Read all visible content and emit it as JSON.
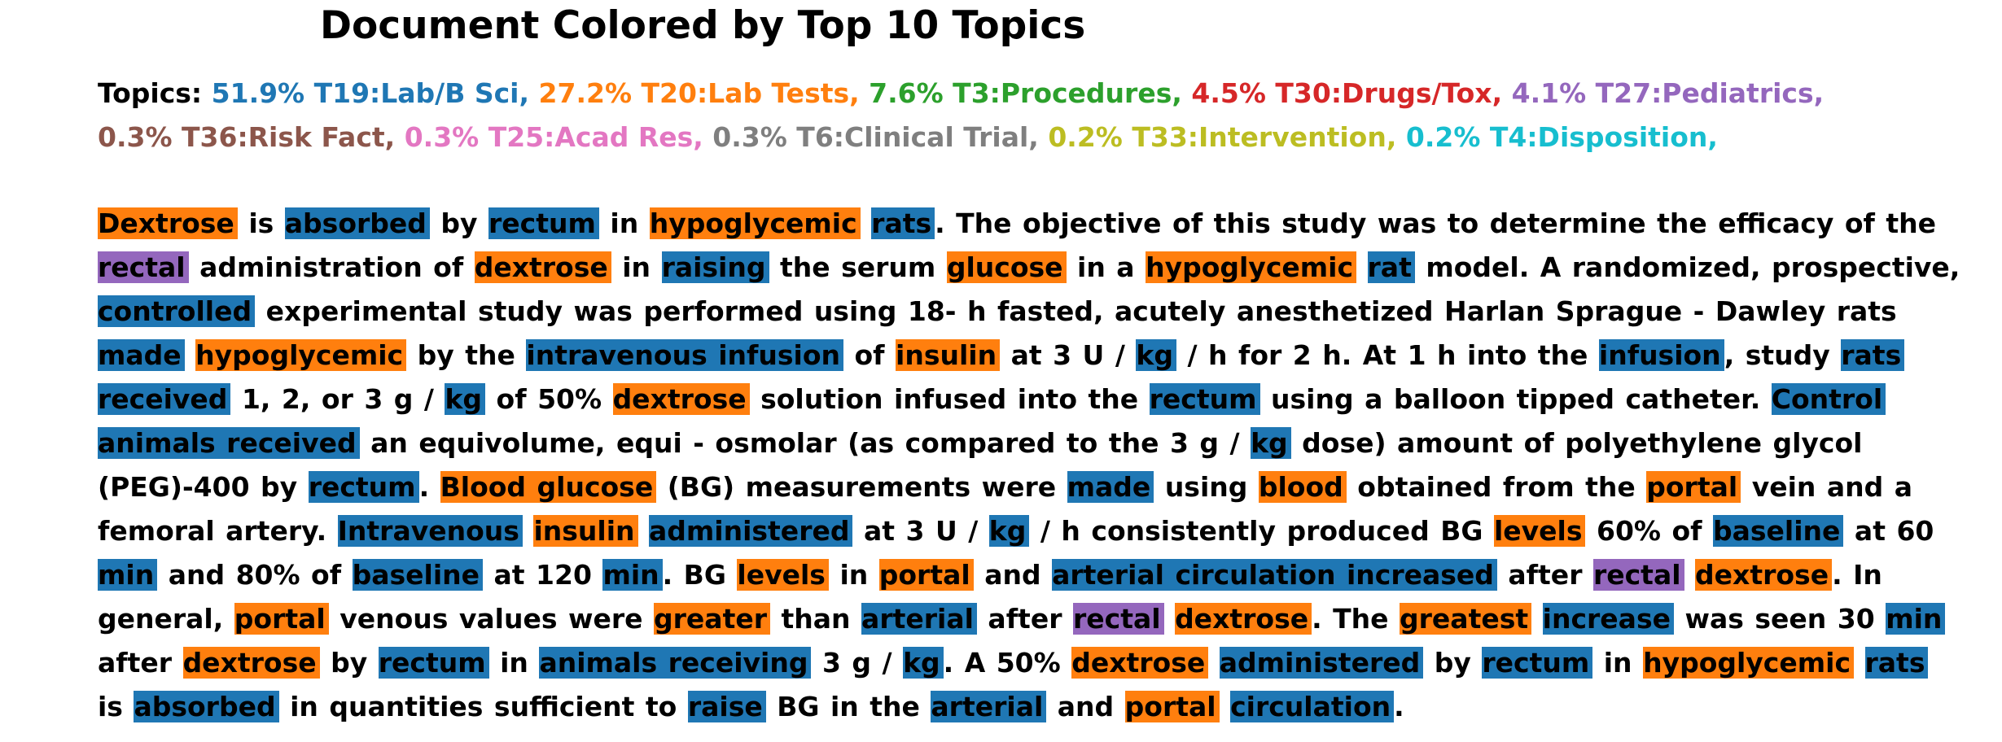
{
  "title": "Document Colored by Top 10 Topics",
  "topics_label": "Topics:",
  "topics": [
    {
      "text": "51.9% T19:Lab/B Sci,",
      "color": "#1f77b4"
    },
    {
      "text": "27.2% T20:Lab Tests,",
      "color": "#ff7f0e"
    },
    {
      "text": "7.6% T3:Procedures,",
      "color": "#2ca02c"
    },
    {
      "text": "4.5% T30:Drugs/Tox,",
      "color": "#d62728"
    },
    {
      "text": "4.1% T27:Pediatrics,",
      "color": "#9467bd"
    },
    {
      "text": "0.3% T36:Risk Fact,",
      "color": "#8c564b"
    },
    {
      "text": "0.3% T25:Acad Res,",
      "color": "#e377c2"
    },
    {
      "text": "0.3% T6:Clinical Trial,",
      "color": "#7f7f7f"
    },
    {
      "text": "0.2% T33:Intervention,",
      "color": "#bcbd22"
    },
    {
      "text": "0.2% T4:Disposition,",
      "color": "#17becf"
    }
  ],
  "document": [
    [
      "Dextrose",
      "#ff7f0e"
    ],
    [
      "is",
      null
    ],
    [
      "absorbed",
      "#1f77b4"
    ],
    [
      "by",
      null
    ],
    [
      "rectum",
      "#1f77b4"
    ],
    [
      "in",
      null
    ],
    [
      "hypoglycemic",
      "#ff7f0e"
    ],
    [
      "rats",
      "#1f77b4"
    ],
    [
      ". The objective of this study was to determine the efficacy of the",
      null
    ],
    [
      "rectal",
      "#9467bd"
    ],
    [
      "administration of",
      null
    ],
    [
      "dextrose",
      "#ff7f0e"
    ],
    [
      "in",
      null
    ],
    [
      "raising",
      "#1f77b4"
    ],
    [
      "the serum",
      null
    ],
    [
      "glucose",
      "#ff7f0e"
    ],
    [
      "in a",
      null
    ],
    [
      "hypoglycemic",
      "#ff7f0e"
    ],
    [
      "rat",
      "#1f77b4"
    ],
    [
      "model. A randomized, prospective,",
      null
    ],
    [
      "controlled",
      "#1f77b4"
    ],
    [
      "experimental study was performed using 18- h fasted, acutely anesthetized Harlan Sprague - Dawley rats",
      null
    ],
    [
      "made",
      "#1f77b4"
    ],
    [
      "hypoglycemic",
      "#ff7f0e"
    ],
    [
      "by the",
      null
    ],
    [
      "intravenous infusion",
      "#1f77b4"
    ],
    [
      "of",
      null
    ],
    [
      "insulin",
      "#ff7f0e"
    ],
    [
      "at 3 U /",
      null
    ],
    [
      "kg",
      "#1f77b4"
    ],
    [
      "/ h for 2 h. At 1 h into the",
      null
    ],
    [
      "infusion",
      "#1f77b4"
    ],
    [
      ", study",
      null
    ],
    [
      "rats",
      "#1f77b4"
    ],
    [
      "received",
      "#1f77b4"
    ],
    [
      "1, 2, or 3 g /",
      null
    ],
    [
      "kg",
      "#1f77b4"
    ],
    [
      "of 50%",
      null
    ],
    [
      "dextrose",
      "#ff7f0e"
    ],
    [
      "solution infused into the",
      null
    ],
    [
      "rectum",
      "#1f77b4"
    ],
    [
      "using a balloon tipped catheter.",
      null
    ],
    [
      "Control",
      "#1f77b4"
    ],
    [
      "animals received",
      "#1f77b4"
    ],
    [
      "an equivolume, equi - osmolar (as compared to the 3 g /",
      null
    ],
    [
      "kg",
      "#1f77b4"
    ],
    [
      "dose) amount of polyethylene glycol",
      null
    ],
    [
      "(PEG)-400 by",
      null
    ],
    [
      "rectum",
      "#1f77b4"
    ],
    [
      ".",
      null
    ],
    [
      "Blood glucose",
      "#ff7f0e"
    ],
    [
      "(BG) measurements were",
      null
    ],
    [
      "made",
      "#1f77b4"
    ],
    [
      "using",
      null
    ],
    [
      "blood",
      "#ff7f0e"
    ],
    [
      "obtained from the",
      null
    ],
    [
      "portal",
      "#ff7f0e"
    ],
    [
      "vein and a",
      null
    ],
    [
      "femoral artery.",
      null
    ],
    [
      "Intravenous",
      "#1f77b4"
    ],
    [
      "insulin",
      "#ff7f0e"
    ],
    [
      "administered",
      "#1f77b4"
    ],
    [
      "at 3 U /",
      null
    ],
    [
      "kg",
      "#1f77b4"
    ],
    [
      "/ h consistently produced BG",
      null
    ],
    [
      "levels",
      "#ff7f0e"
    ],
    [
      "60% of",
      null
    ],
    [
      "baseline",
      "#1f77b4"
    ],
    [
      "at 60",
      null
    ],
    [
      "min",
      "#1f77b4"
    ],
    [
      "and 80% of",
      null
    ],
    [
      "baseline",
      "#1f77b4"
    ],
    [
      "at 120",
      null
    ],
    [
      "min",
      "#1f77b4"
    ],
    [
      ". BG",
      null
    ],
    [
      "levels",
      "#ff7f0e"
    ],
    [
      "in",
      null
    ],
    [
      "portal",
      "#ff7f0e"
    ],
    [
      "and",
      null
    ],
    [
      "arterial circulation increased",
      "#1f77b4"
    ],
    [
      "after",
      null
    ],
    [
      "rectal",
      "#9467bd"
    ],
    [
      "dextrose",
      "#ff7f0e"
    ],
    [
      ". In",
      null
    ],
    [
      "general,",
      null
    ],
    [
      "portal",
      "#ff7f0e"
    ],
    [
      "venous values were",
      null
    ],
    [
      "greater",
      "#ff7f0e"
    ],
    [
      "than",
      null
    ],
    [
      "arterial",
      "#1f77b4"
    ],
    [
      "after",
      null
    ],
    [
      "rectal",
      "#9467bd"
    ],
    [
      "dextrose",
      "#ff7f0e"
    ],
    [
      ". The",
      null
    ],
    [
      "greatest",
      "#ff7f0e"
    ],
    [
      "increase",
      "#1f77b4"
    ],
    [
      "was seen 30",
      null
    ],
    [
      "min",
      "#1f77b4"
    ],
    [
      "after",
      null
    ],
    [
      "dextrose",
      "#ff7f0e"
    ],
    [
      "by",
      null
    ],
    [
      "rectum",
      "#1f77b4"
    ],
    [
      "in",
      null
    ],
    [
      "animals receiving",
      "#1f77b4"
    ],
    [
      "3 g /",
      null
    ],
    [
      "kg",
      "#1f77b4"
    ],
    [
      ". A 50%",
      null
    ],
    [
      "dextrose",
      "#ff7f0e"
    ],
    [
      "administered",
      "#1f77b4"
    ],
    [
      "by",
      null
    ],
    [
      "rectum",
      "#1f77b4"
    ],
    [
      "in",
      null
    ],
    [
      "hypoglycemic",
      "#ff7f0e"
    ],
    [
      "rats",
      "#1f77b4"
    ],
    [
      "is",
      null
    ],
    [
      "absorbed",
      "#1f77b4"
    ],
    [
      "in quantities sufficient to",
      null
    ],
    [
      "raise",
      "#1f77b4"
    ],
    [
      "BG in the",
      null
    ],
    [
      "arterial",
      "#1f77b4"
    ],
    [
      "and",
      null
    ],
    [
      "portal",
      "#ff7f0e"
    ],
    [
      "circulation",
      "#1f77b4"
    ],
    [
      ".",
      null
    ]
  ]
}
